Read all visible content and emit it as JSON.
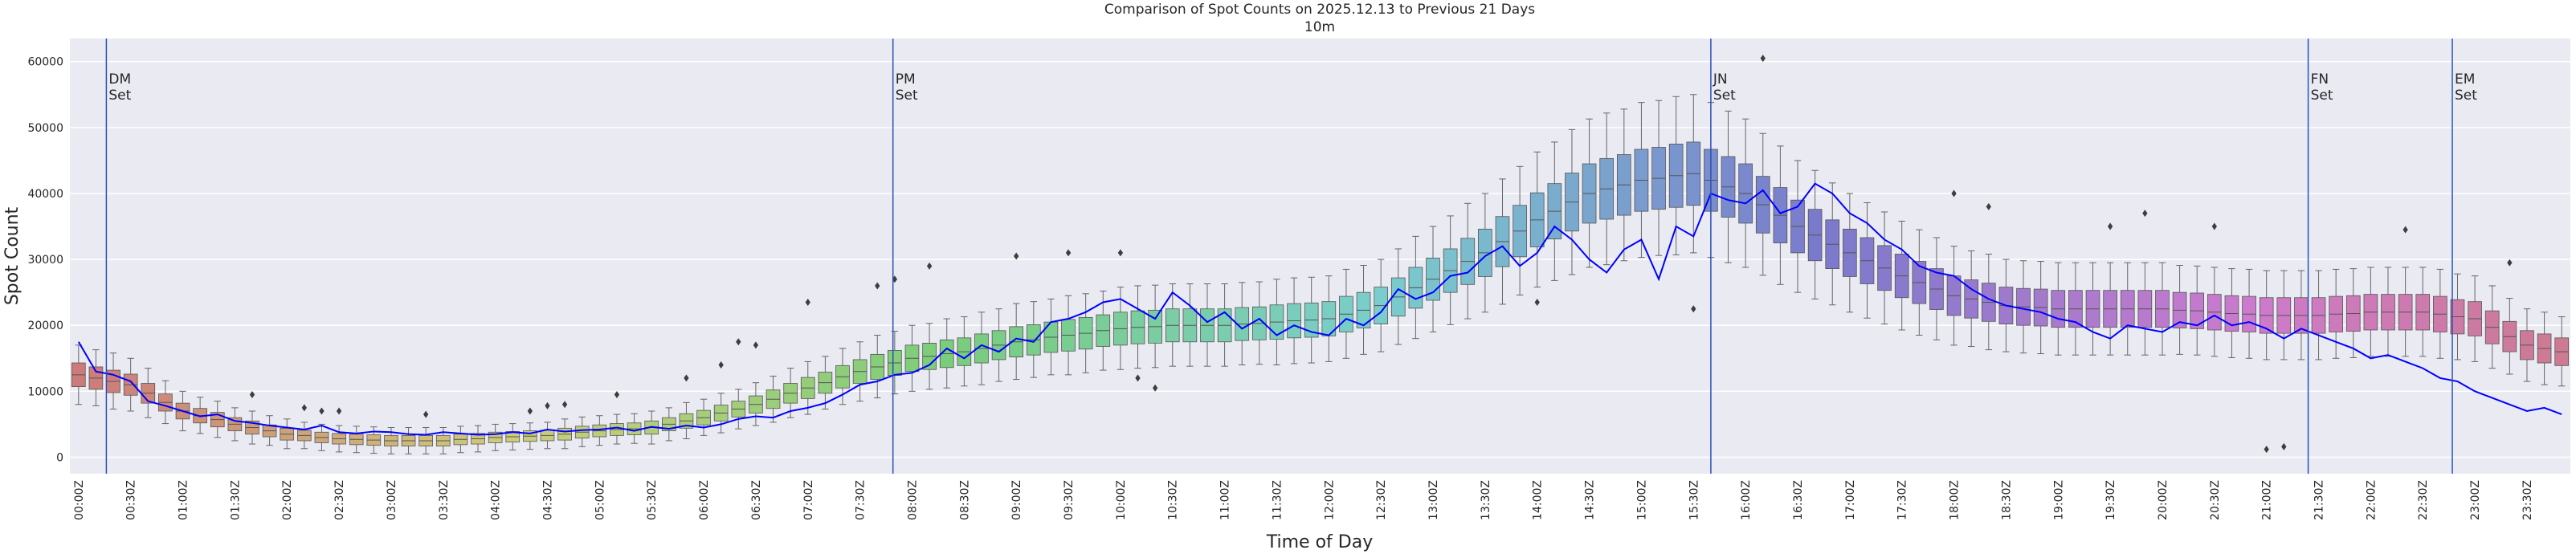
{
  "chart_data": {
    "type": "box",
    "title": "Comparison of Spot Counts on 2025.12.13 to Previous 21 Days",
    "subtitle": "10m",
    "x_label": "Time of Day",
    "y_label": "Spot Count",
    "palette": "husl",
    "grid": true,
    "ylim": [
      -2500,
      63500
    ],
    "yticks": [
      0,
      10000,
      20000,
      30000,
      40000,
      50000,
      60000
    ],
    "categories": [
      "00:00Z",
      null,
      null,
      "00:30Z",
      null,
      null,
      "01:00Z",
      null,
      null,
      "01:30Z",
      null,
      null,
      "02:00Z",
      null,
      null,
      "02:30Z",
      null,
      null,
      "03:00Z",
      null,
      null,
      "03:30Z",
      null,
      null,
      "04:00Z",
      null,
      null,
      "04:30Z",
      null,
      null,
      "05:00Z",
      null,
      null,
      "05:30Z",
      null,
      null,
      "06:00Z",
      null,
      null,
      "06:30Z",
      null,
      null,
      "07:00Z",
      null,
      null,
      "07:30Z",
      null,
      null,
      "08:00Z",
      null,
      null,
      "08:30Z",
      null,
      null,
      "09:00Z",
      null,
      null,
      "09:30Z",
      null,
      null,
      "10:00Z",
      null,
      null,
      "10:30Z",
      null,
      null,
      "11:00Z",
      null,
      null,
      "11:30Z",
      null,
      null,
      "12:00Z",
      null,
      null,
      "12:30Z",
      null,
      null,
      "13:00Z",
      null,
      null,
      "13:30Z",
      null,
      null,
      "14:00Z",
      null,
      null,
      "14:30Z",
      null,
      null,
      "15:00Z",
      null,
      null,
      "15:30Z",
      null,
      null,
      "16:00Z",
      null,
      null,
      "16:30Z",
      null,
      null,
      "17:00Z",
      null,
      null,
      "17:30Z",
      null,
      null,
      "18:00Z",
      null,
      null,
      "18:30Z",
      null,
      null,
      "19:00Z",
      null,
      null,
      "19:30Z",
      null,
      null,
      "20:00Z",
      null,
      null,
      "20:30Z",
      null,
      null,
      "21:00Z",
      null,
      null,
      "21:30Z",
      null,
      null,
      "22:00Z",
      null,
      null,
      "22:30Z",
      null,
      null,
      "23:00Z",
      null,
      null,
      "23:30Z",
      null,
      null
    ],
    "boxes": {
      "median": [
        12500,
        12000,
        11500,
        11000,
        9700,
        8300,
        7000,
        6300,
        5700,
        5000,
        4500,
        4000,
        3500,
        3300,
        3000,
        2800,
        2700,
        2600,
        2500,
        2500,
        2500,
        2500,
        2700,
        2800,
        3000,
        3100,
        3200,
        3300,
        3500,
        3800,
        4000,
        4200,
        4300,
        4500,
        5000,
        5500,
        6000,
        6700,
        7300,
        8000,
        8800,
        9700,
        10500,
        11300,
        12200,
        13000,
        13700,
        14300,
        15000,
        15300,
        15700,
        16000,
        16500,
        17000,
        17500,
        17800,
        18200,
        18500,
        18800,
        19200,
        19500,
        19700,
        19800,
        20000,
        20000,
        20000,
        20000,
        20200,
        20300,
        20500,
        20700,
        20800,
        21000,
        21700,
        22300,
        23000,
        24300,
        25700,
        27000,
        28300,
        29700,
        31000,
        32700,
        34300,
        36000,
        37300,
        38700,
        40000,
        40700,
        41300,
        42000,
        42300,
        42700,
        43000,
        42000,
        41000,
        40000,
        38300,
        36700,
        35000,
        33700,
        32300,
        31000,
        29800,
        28700,
        27500,
        26500,
        25500,
        24500,
        24000,
        23500,
        23000,
        22800,
        22700,
        22500,
        22500,
        22500,
        22500,
        22500,
        22500,
        22500,
        22300,
        22200,
        22000,
        21800,
        21700,
        21500,
        21500,
        21500,
        21500,
        21700,
        21800,
        22000,
        22000,
        22000,
        22000,
        21700,
        21300,
        21000,
        19700,
        18300,
        17000,
        16500,
        16000
      ],
      "q1": [
        10700,
        10300,
        9800,
        9400,
        8200,
        7000,
        5800,
        5200,
        4600,
        4000,
        3500,
        3100,
        2600,
        2500,
        2200,
        2000,
        1900,
        1800,
        1700,
        1700,
        1700,
        1700,
        1900,
        2000,
        2200,
        2300,
        2400,
        2500,
        2600,
        2900,
        3100,
        3300,
        3400,
        3500,
        4000,
        4400,
        4900,
        5500,
        6100,
        6700,
        7400,
        8200,
        8900,
        9700,
        10500,
        11200,
        11800,
        12400,
        13000,
        13300,
        13600,
        13900,
        14300,
        14800,
        15200,
        15500,
        15900,
        16100,
        16400,
        16800,
        17000,
        17200,
        17300,
        17500,
        17500,
        17500,
        17500,
        17700,
        17800,
        17900,
        18100,
        18200,
        18400,
        19000,
        19600,
        20200,
        21400,
        22600,
        23800,
        25000,
        26200,
        27400,
        28900,
        30400,
        31900,
        33100,
        34300,
        35500,
        36100,
        36700,
        37300,
        37600,
        37900,
        38200,
        37300,
        36400,
        35500,
        34000,
        32500,
        31000,
        29800,
        28600,
        27400,
        26300,
        25300,
        24200,
        23300,
        22400,
        21500,
        21100,
        20600,
        20200,
        20000,
        19900,
        19700,
        19700,
        19700,
        19700,
        19700,
        19700,
        19700,
        19600,
        19500,
        19300,
        19100,
        19000,
        18800,
        18800,
        18800,
        18800,
        19000,
        19100,
        19300,
        19300,
        19300,
        19300,
        19000,
        18700,
        18400,
        17200,
        16000,
        14800,
        14300,
        13900
      ],
      "q3": [
        14300,
        13700,
        13200,
        12600,
        11200,
        9600,
        8200,
        7400,
        6800,
        6000,
        5500,
        4900,
        4400,
        4100,
        3800,
        3600,
        3500,
        3400,
        3300,
        3300,
        3300,
        3300,
        3500,
        3600,
        3800,
        3900,
        4000,
        4100,
        4400,
        4700,
        4900,
        5100,
        5200,
        5500,
        6000,
        6600,
        7100,
        7900,
        8500,
        9300,
        10200,
        11200,
        12100,
        12900,
        13900,
        14800,
        15600,
        16200,
        17000,
        17300,
        17800,
        18100,
        18700,
        19200,
        19800,
        20100,
        20500,
        20900,
        21200,
        21600,
        22000,
        22200,
        22300,
        22500,
        22500,
        22500,
        22500,
        22700,
        22800,
        23100,
        23300,
        23400,
        23600,
        24400,
        25000,
        25800,
        27200,
        28800,
        30200,
        31600,
        33200,
        34600,
        36500,
        38200,
        40100,
        41500,
        43100,
        44500,
        45300,
        45900,
        46700,
        47000,
        47500,
        47800,
        46700,
        45600,
        44500,
        42600,
        40900,
        39000,
        37600,
        36000,
        34600,
        33300,
        32100,
        30800,
        29700,
        28600,
        27500,
        26900,
        26400,
        25800,
        25600,
        25500,
        25300,
        25300,
        25300,
        25300,
        25300,
        25300,
        25300,
        25000,
        24900,
        24700,
        24500,
        24400,
        24200,
        24200,
        24200,
        24200,
        24400,
        24500,
        24700,
        24700,
        24700,
        24700,
        24400,
        23900,
        23600,
        22200,
        20600,
        19200,
        18700,
        18100
      ],
      "whislo": [
        8000,
        7800,
        7300,
        7000,
        6000,
        5100,
        4000,
        3600,
        3000,
        2500,
        2000,
        1800,
        1300,
        1300,
        1000,
        800,
        700,
        600,
        500,
        500,
        500,
        500,
        700,
        800,
        1000,
        1100,
        1200,
        1300,
        1300,
        1600,
        1800,
        2000,
        2100,
        2000,
        2500,
        2800,
        3300,
        3700,
        4300,
        4800,
        5300,
        6000,
        6500,
        7300,
        8000,
        8500,
        9000,
        9600,
        10000,
        10300,
        10500,
        10800,
        11000,
        11500,
        11800,
        12100,
        12500,
        12500,
        12800,
        13200,
        13300,
        13500,
        13600,
        13800,
        13800,
        13800,
        13800,
        14000,
        14100,
        14000,
        14200,
        14300,
        14500,
        15000,
        15600,
        16000,
        17100,
        18000,
        19000,
        20100,
        21000,
        22000,
        23200,
        24600,
        25800,
        26800,
        27700,
        28800,
        29200,
        29800,
        30300,
        30600,
        30700,
        31000,
        30300,
        29500,
        28800,
        27600,
        26200,
        25000,
        24000,
        23100,
        22000,
        21100,
        20200,
        19300,
        18500,
        17800,
        17000,
        16800,
        16300,
        16000,
        15800,
        15700,
        15500,
        15500,
        15500,
        15500,
        15500,
        15500,
        15500,
        15600,
        15500,
        15300,
        15100,
        15000,
        14800,
        14800,
        14800,
        14800,
        15000,
        15100,
        15300,
        15300,
        15300,
        15300,
        15000,
        14800,
        14500,
        13500,
        12600,
        11500,
        11000,
        10800
      ],
      "whishi": [
        17000,
        16300,
        15800,
        15000,
        13500,
        11600,
        10000,
        9100,
        8500,
        7500,
        7000,
        6300,
        5800,
        5300,
        5000,
        4800,
        4700,
        4600,
        4500,
        4500,
        4500,
        4500,
        4700,
        4800,
        5000,
        5100,
        5200,
        5300,
        5800,
        6100,
        6300,
        6500,
        6600,
        7000,
        7500,
        8300,
        8800,
        9700,
        10300,
        11300,
        12300,
        13500,
        14500,
        15300,
        16500,
        17500,
        18500,
        19100,
        20000,
        20300,
        21000,
        21300,
        22000,
        22500,
        23300,
        23600,
        24000,
        24500,
        24800,
        25200,
        25800,
        26000,
        26100,
        26300,
        26300,
        26300,
        26300,
        26500,
        26600,
        27000,
        27200,
        27300,
        27500,
        28500,
        29100,
        30000,
        31600,
        33500,
        35000,
        36600,
        38500,
        40000,
        42200,
        44100,
        46300,
        47800,
        49700,
        51300,
        52200,
        52800,
        53800,
        54100,
        54700,
        55000,
        53800,
        52500,
        51300,
        49100,
        47200,
        45000,
        43500,
        41600,
        40000,
        38600,
        37200,
        35800,
        34500,
        33300,
        32000,
        31300,
        30800,
        30000,
        29800,
        29700,
        29500,
        29500,
        29500,
        29500,
        29500,
        29500,
        29500,
        29100,
        29000,
        28800,
        28600,
        28500,
        28300,
        28300,
        28300,
        28300,
        28500,
        28600,
        28800,
        28800,
        28800,
        28800,
        28500,
        27800,
        27500,
        26000,
        24100,
        22500,
        22000,
        21300
      ]
    },
    "outliers": {
      "x": [
        10,
        13,
        14,
        15,
        20,
        26,
        27,
        28,
        31,
        35,
        37,
        38,
        39,
        42,
        46,
        47,
        49,
        54,
        57,
        60,
        61,
        62,
        84,
        93,
        97,
        108,
        110,
        117,
        119,
        123,
        126,
        127,
        134,
        140
      ],
      "y": [
        9500,
        7500,
        7000,
        7000,
        6500,
        7000,
        7800,
        8000,
        9500,
        12000,
        14000,
        17500,
        17000,
        23500,
        26000,
        27000,
        29000,
        30500,
        31000,
        31000,
        12000,
        10500,
        23500,
        22500,
        60500,
        40000,
        38000,
        35000,
        37000,
        35000,
        1200,
        1600,
        34500,
        29500
      ]
    },
    "line": {
      "color": "#0000ff",
      "values": [
        17500,
        13000,
        12500,
        11500,
        8500,
        7800,
        7000,
        6200,
        6500,
        5500,
        5200,
        4800,
        4500,
        4200,
        4800,
        3800,
        3600,
        3900,
        3800,
        3500,
        3400,
        3800,
        3600,
        3400,
        3500,
        3800,
        3600,
        4200,
        3900,
        4100,
        4200,
        4500,
        4000,
        4600,
        4300,
        4800,
        4500,
        5000,
        5800,
        6200,
        6000,
        7000,
        7500,
        8200,
        9500,
        11000,
        11500,
        12500,
        12800,
        14000,
        16500,
        15000,
        17000,
        16000,
        18000,
        17500,
        20500,
        21000,
        22000,
        23500,
        24000,
        22500,
        21000,
        25000,
        23000,
        20500,
        22000,
        19500,
        21000,
        18500,
        20000,
        19000,
        18500,
        21000,
        20000,
        22000,
        25500,
        24000,
        25000,
        27500,
        28000,
        30500,
        32000,
        29000,
        31000,
        35000,
        33000,
        30000,
        28000,
        31500,
        33000,
        27000,
        35000,
        33500,
        40000,
        39000,
        38500,
        40500,
        37000,
        38000,
        41500,
        40000,
        37000,
        35500,
        33000,
        31500,
        29000,
        28000,
        27500,
        25500,
        24000,
        23000,
        22500,
        22000,
        21000,
        20500,
        19000,
        18000,
        20000,
        19500,
        19000,
        20500,
        20000,
        21500,
        20000,
        20500,
        19500,
        18000,
        19500,
        18500,
        17500,
        16500,
        15000,
        15500,
        14500,
        13500,
        12000,
        11500,
        10000,
        9000,
        8000,
        7000,
        7500,
        6500
      ]
    },
    "annotations": [
      {
        "x": 1.6,
        "color": "#2b50b8",
        "text": [
          "DM",
          "Set"
        ]
      },
      {
        "x": 46.9,
        "color": "#2b50b8",
        "text": [
          "PM",
          "Set"
        ]
      },
      {
        "x": 94.0,
        "color": "#2b50b8",
        "text": [
          "JN",
          "Set"
        ]
      },
      {
        "x": 128.4,
        "color": "#2b50b8",
        "text": [
          "FN",
          "Set"
        ]
      },
      {
        "x": 136.7,
        "color": "#2b50b8",
        "text": [
          "EM",
          "Set"
        ]
      }
    ]
  }
}
